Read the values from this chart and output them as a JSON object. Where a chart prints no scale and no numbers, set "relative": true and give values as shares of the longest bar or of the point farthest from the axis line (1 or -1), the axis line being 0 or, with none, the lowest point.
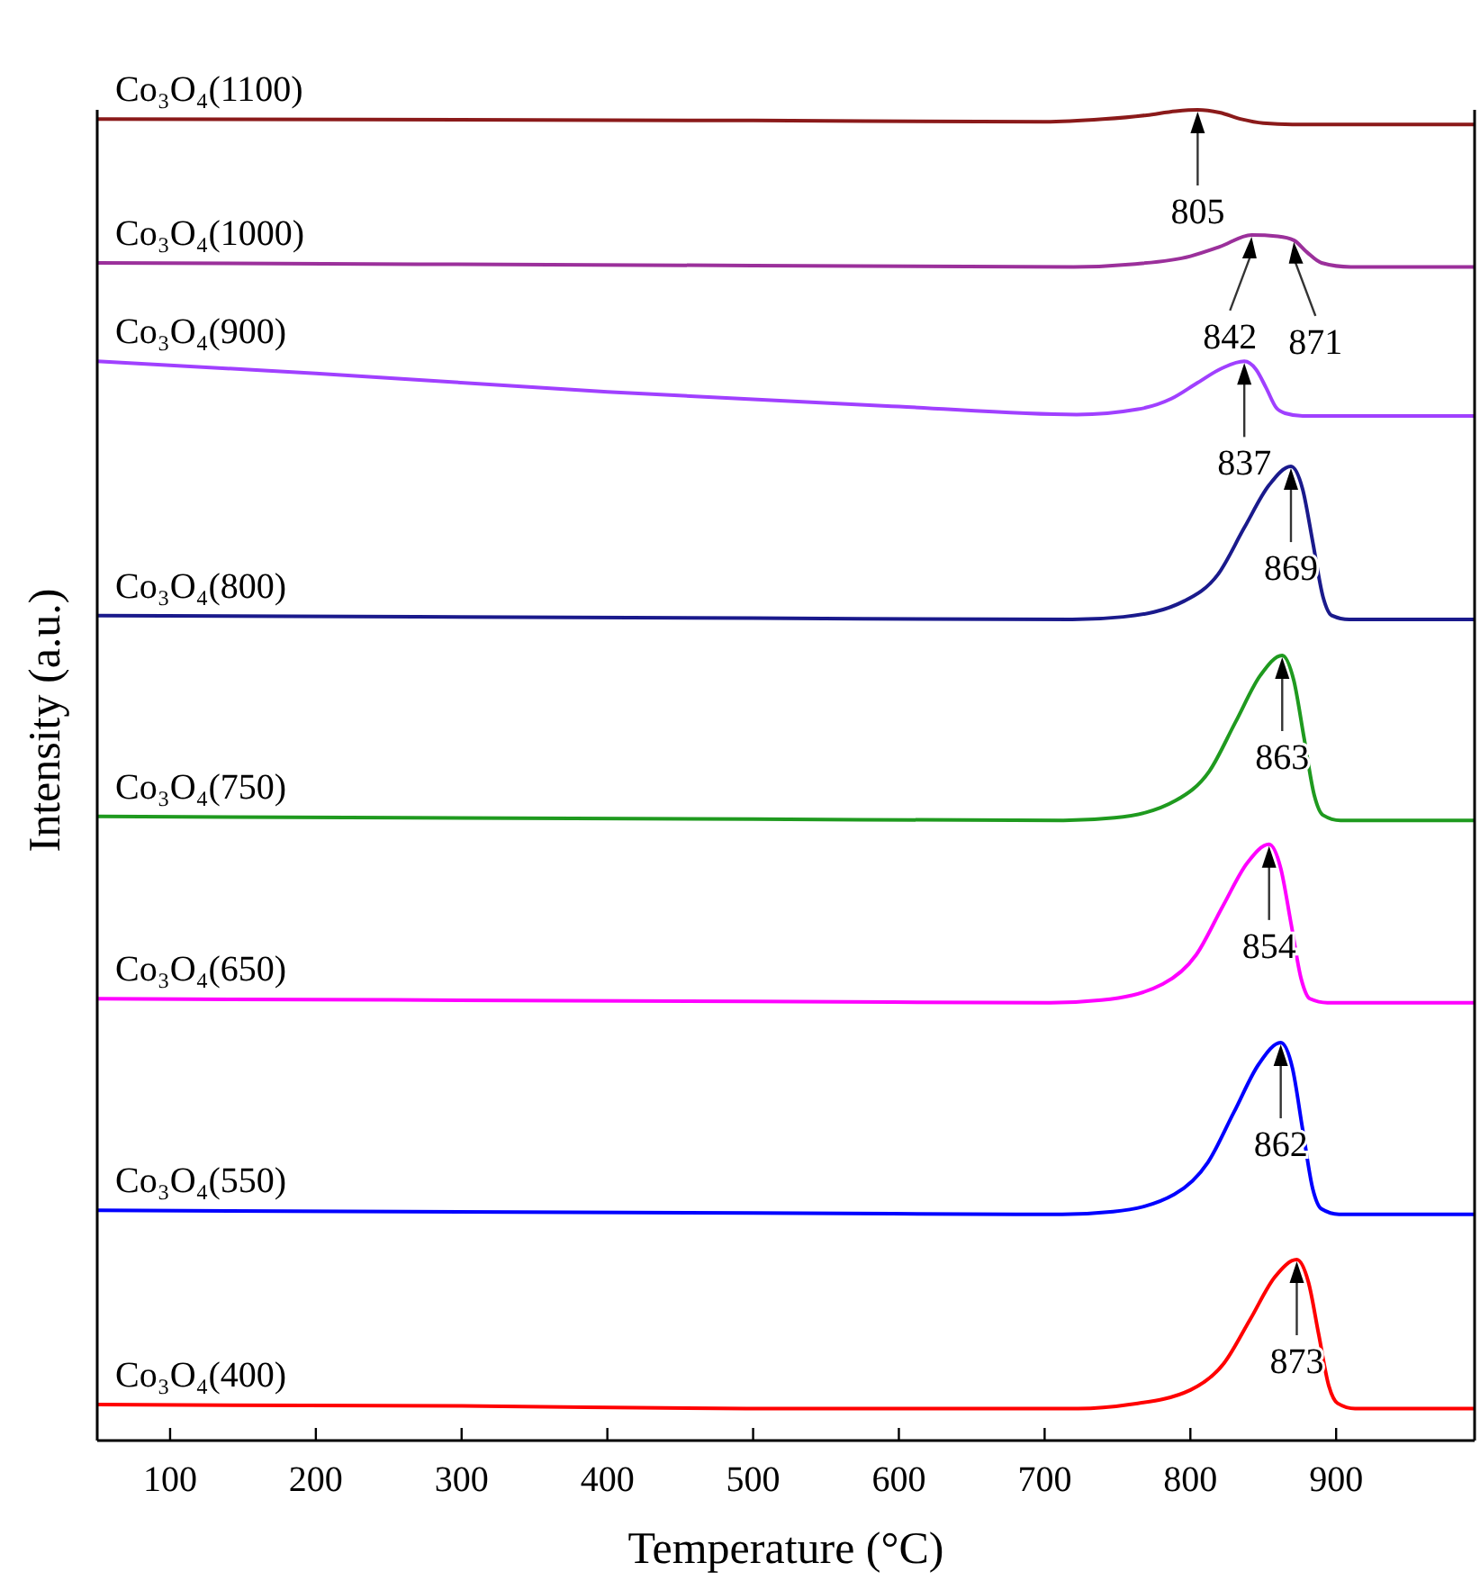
{
  "chart_data": {
    "type": "line",
    "relative": true,
    "xlabel": "Temperature (°C)",
    "ylabel": "Intensity (a.u.)",
    "xlim": [
      50,
      995
    ],
    "xticks": [
      100,
      200,
      300,
      400,
      500,
      600,
      700,
      800,
      900
    ],
    "tick_labels": "x",
    "line_style": "solid",
    "marker": "none",
    "series": [
      {
        "name": "Co₃O₄(400)",
        "color": "#ff0000",
        "x": [
          50,
          300,
          500,
          723,
          758,
          800,
          823,
          841,
          858,
          873,
          881,
          888,
          895,
          901,
          913,
          995
        ],
        "values": [
          0.027,
          0.026,
          0.024,
          0.024,
          0.027,
          0.038,
          0.058,
          0.091,
          0.123,
          0.136,
          0.119,
          0.08,
          0.041,
          0.028,
          0.024,
          0.024
        ]
      },
      {
        "name": "Co₃O₄(550)",
        "color": "#0000ff",
        "x": [
          50,
          500,
          712,
          747,
          789,
          812,
          830,
          847,
          862,
          870,
          877,
          884,
          890,
          902,
          995
        ],
        "values": [
          0.173,
          0.171,
          0.17,
          0.172,
          0.185,
          0.209,
          0.247,
          0.283,
          0.299,
          0.28,
          0.234,
          0.189,
          0.174,
          0.17,
          0.17
        ]
      },
      {
        "name": "Co₃O₄(650)",
        "color": "#ff00ff",
        "x": [
          50,
          500,
          704,
          739,
          781,
          804,
          822,
          839,
          854,
          862,
          869,
          876,
          882,
          894,
          995
        ],
        "values": [
          0.332,
          0.33,
          0.329,
          0.331,
          0.343,
          0.365,
          0.401,
          0.434,
          0.448,
          0.43,
          0.389,
          0.347,
          0.332,
          0.329,
          0.329
        ]
      },
      {
        "name": "Co₃O₄(750)",
        "color": "#1f9a1f",
        "x": [
          50,
          500,
          713,
          748,
          790,
          813,
          831,
          848,
          863,
          871,
          878,
          885,
          891,
          903,
          995
        ],
        "values": [
          0.469,
          0.467,
          0.466,
          0.468,
          0.481,
          0.503,
          0.54,
          0.575,
          0.59,
          0.571,
          0.528,
          0.485,
          0.47,
          0.466,
          0.466
        ]
      },
      {
        "name": "Co₃O₄(800)",
        "color": "#1a1a8c",
        "x": [
          50,
          500,
          719,
          754,
          796,
          819,
          837,
          854,
          869,
          877,
          884,
          891,
          897,
          909,
          995
        ],
        "values": [
          0.62,
          0.618,
          0.617,
          0.619,
          0.631,
          0.651,
          0.686,
          0.718,
          0.732,
          0.715,
          0.675,
          0.634,
          0.62,
          0.617,
          0.617
        ]
      },
      {
        "name": "Co₃O₄(900)",
        "color": "#a040ff",
        "x": [
          50,
          200,
          400,
          600,
          722,
          764,
          787,
          805,
          822,
          837,
          845,
          852,
          859,
          865,
          877,
          995
        ],
        "values": [
          0.811,
          0.802,
          0.788,
          0.777,
          0.771,
          0.775,
          0.783,
          0.795,
          0.806,
          0.811,
          0.805,
          0.791,
          0.776,
          0.772,
          0.77,
          0.77
        ]
      },
      {
        "name": "Co₃O₄(1000)",
        "color": "#9b309b",
        "x": [
          50,
          500,
          720,
          760,
          800,
          820,
          842,
          860,
          871,
          880,
          890,
          910,
          995
        ],
        "values": [
          0.885,
          0.883,
          0.882,
          0.884,
          0.89,
          0.897,
          0.906,
          0.905,
          0.902,
          0.893,
          0.885,
          0.882,
          0.882
        ]
      },
      {
        "name": "Co₃O₄(1100)",
        "color": "#8b1a1a",
        "x": [
          50,
          500,
          700,
          740,
          770,
          790,
          805,
          820,
          835,
          850,
          870,
          995
        ],
        "values": [
          0.993,
          0.992,
          0.991,
          0.993,
          0.996,
          0.999,
          1,
          0.998,
          0.993,
          0.99,
          0.989,
          0.989
        ]
      }
    ],
    "annotations": [
      {
        "text": "805",
        "x": 805,
        "y": 1
      },
      {
        "text": "842",
        "x": 842,
        "y": 0.906
      },
      {
        "text": "871",
        "x": 871,
        "y": 0.902
      },
      {
        "text": "837",
        "x": 837,
        "y": 0.811
      },
      {
        "text": "869",
        "x": 869,
        "y": 0.732
      },
      {
        "text": "863",
        "x": 863,
        "y": 0.59
      },
      {
        "text": "854",
        "x": 854,
        "y": 0.448
      },
      {
        "text": "862",
        "x": 862,
        "y": 0.299
      },
      {
        "text": "873",
        "x": 873,
        "y": 0.136
      }
    ]
  }
}
